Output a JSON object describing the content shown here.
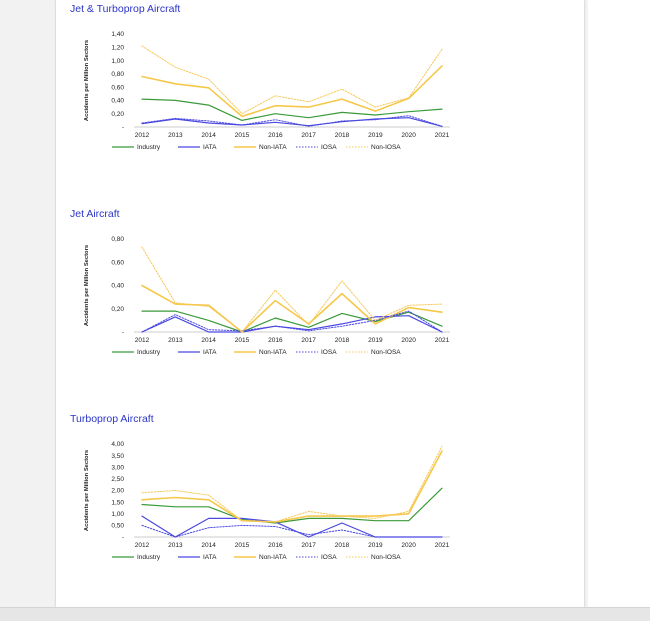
{
  "colors": {
    "industry": "#3a9a3a",
    "iata": "#4a48e0",
    "non_iata": "#f5c84a",
    "iosa": "#4a48e0",
    "non_iosa": "#f7c85a",
    "title": "#2b35c8"
  },
  "chart_data": [
    {
      "type": "line",
      "title": "Jet & Turboprop Aircraft",
      "ylabel": "Accidents per Million Sectors",
      "x": [
        "2012",
        "2013",
        "2014",
        "2015",
        "2016",
        "2017",
        "2018",
        "2019",
        "2020",
        "2021"
      ],
      "ylim": [
        0,
        1.4
      ],
      "yticks": [
        "-",
        "0,20",
        "0,40",
        "0,60",
        "0,80",
        "1,00",
        "1,20",
        "1,40"
      ],
      "series": [
        {
          "name": "Industry",
          "values": [
            0.42,
            0.4,
            0.33,
            0.1,
            0.2,
            0.14,
            0.22,
            0.18,
            0.23,
            0.27
          ]
        },
        {
          "name": "IATA",
          "values": [
            0.05,
            0.12,
            0.06,
            0.03,
            0.07,
            0.02,
            0.08,
            0.12,
            0.14,
            0.01
          ]
        },
        {
          "name": "Non-IATA",
          "values": [
            0.76,
            0.65,
            0.59,
            0.16,
            0.32,
            0.3,
            0.42,
            0.24,
            0.43,
            0.92
          ]
        },
        {
          "name": "IOSA",
          "values": [
            0.06,
            0.13,
            0.09,
            0.03,
            0.11,
            0.01,
            0.09,
            0.11,
            0.17,
            0.01
          ]
        },
        {
          "name": "Non-IOSA",
          "values": [
            1.22,
            0.9,
            0.72,
            0.2,
            0.47,
            0.38,
            0.57,
            0.3,
            0.44,
            1.17
          ]
        }
      ]
    },
    {
      "type": "line",
      "title": "Jet Aircraft",
      "ylabel": "Accidents per Million Sectors",
      "x": [
        "2012",
        "2013",
        "2014",
        "2015",
        "2016",
        "2017",
        "2018",
        "2019",
        "2020",
        "2021"
      ],
      "ylim": [
        0,
        0.8
      ],
      "yticks": [
        "-",
        "0,20",
        "0,40",
        "0,60",
        "0,80"
      ],
      "series": [
        {
          "name": "Industry",
          "values": [
            0.18,
            0.18,
            0.1,
            0.0,
            0.12,
            0.04,
            0.16,
            0.09,
            0.17,
            0.05
          ]
        },
        {
          "name": "IATA",
          "values": [
            0.0,
            0.13,
            0.0,
            0.0,
            0.05,
            0.02,
            0.07,
            0.13,
            0.14,
            0.0
          ]
        },
        {
          "name": "Non-IATA",
          "values": [
            0.4,
            0.24,
            0.23,
            0.0,
            0.27,
            0.07,
            0.33,
            0.07,
            0.21,
            0.17
          ]
        },
        {
          "name": "IOSA",
          "values": [
            0.0,
            0.15,
            0.02,
            0.01,
            0.05,
            0.01,
            0.05,
            0.1,
            0.18,
            0.0
          ]
        },
        {
          "name": "Non-IOSA",
          "values": [
            0.73,
            0.25,
            0.22,
            0.0,
            0.36,
            0.06,
            0.44,
            0.1,
            0.23,
            0.24
          ]
        }
      ]
    },
    {
      "type": "line",
      "title": "Turboprop Aircraft",
      "ylabel": "Accidents per Million Sectors",
      "x": [
        "2012",
        "2013",
        "2014",
        "2015",
        "2016",
        "2017",
        "2018",
        "2019",
        "2020",
        "2021"
      ],
      "ylim": [
        0,
        4.0
      ],
      "yticks": [
        "-",
        "0,50",
        "1,00",
        "1,50",
        "2,00",
        "2,50",
        "3,00",
        "3,50",
        "4,00"
      ],
      "series": [
        {
          "name": "Industry",
          "values": [
            1.4,
            1.3,
            1.3,
            0.75,
            0.6,
            0.8,
            0.8,
            0.7,
            0.7,
            2.1
          ]
        },
        {
          "name": "IATA",
          "values": [
            0.9,
            0.0,
            0.8,
            0.8,
            0.65,
            0.0,
            0.6,
            0.0,
            0.0,
            0.0
          ]
        },
        {
          "name": "Non-IATA",
          "values": [
            1.6,
            1.7,
            1.6,
            0.7,
            0.65,
            0.9,
            0.9,
            0.9,
            1.0,
            3.7
          ]
        },
        {
          "name": "IOSA",
          "values": [
            0.5,
            0.0,
            0.4,
            0.5,
            0.45,
            0.1,
            0.3,
            0.0,
            0.0,
            0.0
          ]
        },
        {
          "name": "Non-IOSA",
          "values": [
            1.9,
            2.0,
            1.8,
            0.7,
            0.65,
            1.1,
            0.9,
            0.8,
            1.1,
            3.9
          ]
        }
      ]
    }
  ]
}
